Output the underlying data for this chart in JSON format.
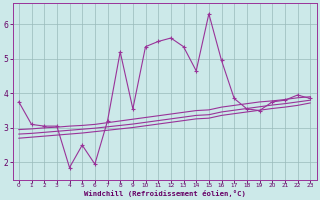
{
  "background_color": "#cce9e9",
  "grid_color": "#99bbbb",
  "line_color": "#993399",
  "xlabel": "Windchill (Refroidissement éolien,°C)",
  "xlim": [
    -0.5,
    23.5
  ],
  "ylim": [
    1.5,
    6.6
  ],
  "yticks": [
    2,
    3,
    4,
    5,
    6
  ],
  "xticks": [
    0,
    1,
    2,
    3,
    4,
    5,
    6,
    7,
    8,
    9,
    10,
    11,
    12,
    13,
    14,
    15,
    16,
    17,
    18,
    19,
    20,
    21,
    22,
    23
  ],
  "line1_x": [
    0,
    1,
    2,
    3,
    4,
    5,
    6,
    7,
    8,
    9,
    10,
    11,
    12,
    13,
    14,
    15,
    16,
    17,
    18,
    19,
    20,
    21,
    22,
    23
  ],
  "line1_y": [
    3.75,
    3.1,
    3.05,
    3.05,
    1.85,
    2.5,
    1.95,
    3.2,
    5.2,
    3.55,
    5.35,
    5.5,
    5.6,
    5.35,
    4.65,
    6.3,
    4.95,
    3.85,
    3.55,
    3.5,
    3.75,
    3.8,
    3.95,
    3.85
  ],
  "line2_x": [
    0,
    1,
    2,
    3,
    4,
    5,
    6,
    7,
    8,
    9,
    10,
    11,
    12,
    13,
    14,
    15,
    16,
    17,
    18,
    19,
    20,
    21,
    22,
    23
  ],
  "line2_y": [
    2.95,
    2.97,
    3.0,
    3.02,
    3.05,
    3.07,
    3.1,
    3.15,
    3.2,
    3.25,
    3.3,
    3.35,
    3.4,
    3.45,
    3.5,
    3.52,
    3.6,
    3.65,
    3.7,
    3.75,
    3.78,
    3.82,
    3.87,
    3.9
  ],
  "line3_x": [
    0,
    1,
    2,
    3,
    4,
    5,
    6,
    7,
    8,
    9,
    10,
    11,
    12,
    13,
    14,
    15,
    16,
    17,
    18,
    19,
    20,
    21,
    22,
    23
  ],
  "line3_y": [
    2.82,
    2.84,
    2.87,
    2.9,
    2.93,
    2.96,
    2.99,
    3.03,
    3.07,
    3.11,
    3.16,
    3.21,
    3.26,
    3.31,
    3.36,
    3.38,
    3.46,
    3.51,
    3.56,
    3.61,
    3.66,
    3.7,
    3.75,
    3.8
  ],
  "line4_x": [
    0,
    1,
    2,
    3,
    4,
    5,
    6,
    7,
    8,
    9,
    10,
    11,
    12,
    13,
    14,
    15,
    16,
    17,
    18,
    19,
    20,
    21,
    22,
    23
  ],
  "line4_y": [
    2.7,
    2.73,
    2.76,
    2.79,
    2.82,
    2.85,
    2.89,
    2.93,
    2.97,
    3.01,
    3.06,
    3.11,
    3.16,
    3.21,
    3.26,
    3.28,
    3.36,
    3.41,
    3.46,
    3.51,
    3.56,
    3.6,
    3.65,
    3.72
  ]
}
